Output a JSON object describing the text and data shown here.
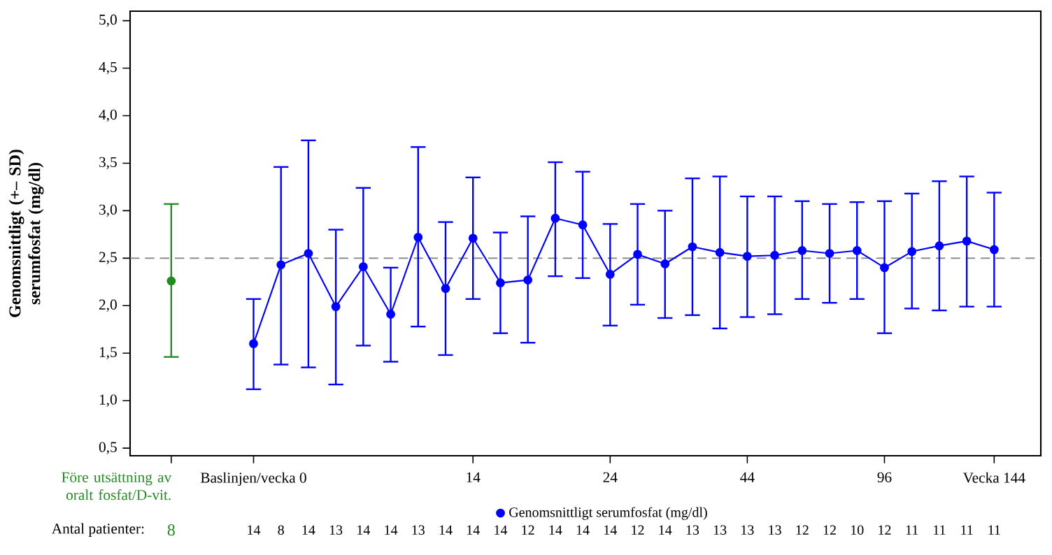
{
  "chart_data": {
    "type": "line",
    "ylabel": "Genomsnittligt (+– SD) serumfosfat (mg/dl)",
    "categories": [
      null,
      null,
      null,
      "Baslinjen/vecka 0",
      null,
      null,
      null,
      null,
      null,
      null,
      null,
      "14",
      null,
      null,
      null,
      null,
      "24",
      null,
      null,
      null,
      null,
      "44",
      null,
      null,
      null,
      null,
      "96",
      null,
      null,
      null,
      "Vecka 144"
    ],
    "series": [
      {
        "color": "#228b22",
        "values": [
          2.26,
          null,
          null,
          null,
          null,
          null,
          null,
          null,
          null,
          null,
          null,
          null,
          null,
          null,
          null,
          null,
          null,
          null,
          null,
          null,
          null,
          null,
          null,
          null,
          null,
          null,
          null,
          null,
          null,
          null,
          null
        ],
        "errors": [
          [
            1.46,
            3.07
          ],
          null,
          null,
          null,
          null,
          null,
          null,
          null,
          null,
          null,
          null,
          null,
          null,
          null,
          null,
          null,
          null,
          null,
          null,
          null,
          null,
          null,
          null,
          null,
          null,
          null,
          null,
          null,
          null,
          null,
          null
        ]
      },
      {
        "name": "Genomsnittligt serumfosfat (mg/dl)",
        "color": "#0000ff",
        "values": [
          null,
          null,
          null,
          1.6,
          2.43,
          2.55,
          1.99,
          2.41,
          1.91,
          2.72,
          2.18,
          2.71,
          2.24,
          2.27,
          2.92,
          2.85,
          2.33,
          2.54,
          2.44,
          2.62,
          2.56,
          2.52,
          2.53,
          2.58,
          2.55,
          2.58,
          2.4,
          2.57,
          2.63,
          2.68,
          2.59
        ],
        "errors": [
          null,
          null,
          null,
          [
            1.12,
            2.07
          ],
          [
            1.38,
            3.46
          ],
          [
            1.35,
            3.74
          ],
          [
            1.17,
            2.8
          ],
          [
            1.58,
            3.24
          ],
          [
            1.41,
            2.4
          ],
          [
            1.78,
            3.67
          ],
          [
            1.48,
            2.88
          ],
          [
            2.07,
            3.35
          ],
          [
            1.71,
            2.77
          ],
          [
            1.61,
            2.94
          ],
          [
            2.31,
            3.51
          ],
          [
            2.29,
            3.41
          ],
          [
            1.79,
            2.86
          ],
          [
            2.01,
            3.07
          ],
          [
            1.87,
            3.0
          ],
          [
            1.9,
            3.34
          ],
          [
            1.76,
            3.36
          ],
          [
            1.88,
            3.15
          ],
          [
            1.91,
            3.15
          ],
          [
            2.07,
            3.1
          ],
          [
            2.03,
            3.07
          ],
          [
            2.07,
            3.09
          ],
          [
            1.71,
            3.1
          ],
          [
            1.97,
            3.18
          ],
          [
            1.95,
            3.31
          ],
          [
            1.99,
            3.36
          ],
          [
            1.99,
            3.19
          ]
        ]
      }
    ],
    "ylim": [
      0.42,
      5.1
    ],
    "yticks": [
      {
        "value": 0.5,
        "label": "0,5"
      },
      {
        "value": 1.0,
        "label": "1,0"
      },
      {
        "value": 1.5,
        "label": "1,5"
      },
      {
        "value": 2.0,
        "label": "2,0"
      },
      {
        "value": 2.5,
        "label": "2,5"
      },
      {
        "value": 3.0,
        "label": "3,0"
      },
      {
        "value": 3.5,
        "label": "3,5"
      },
      {
        "value": 4.0,
        "label": "4,0"
      },
      {
        "value": 4.5,
        "label": "4,5"
      },
      {
        "value": 5.0,
        "label": "5,0"
      }
    ],
    "ref_lines": [
      {
        "axis": "y",
        "value": 2.5,
        "color": "#808080",
        "line_style": "dashed"
      }
    ],
    "marker": "circle",
    "legend": "bottom",
    "annotations": [
      "Före utsättning av oralt fosfat/D-vit.",
      "Antal patienter:",
      "8",
      "14",
      "8",
      "14",
      "13",
      "14",
      "14",
      "13",
      "14",
      "14",
      "14",
      "12",
      "14",
      "14",
      "14",
      "12",
      "14",
      "13",
      "13",
      "13",
      "13",
      "12",
      "12",
      "10",
      "12",
      "11",
      "11",
      "11",
      "11"
    ]
  }
}
